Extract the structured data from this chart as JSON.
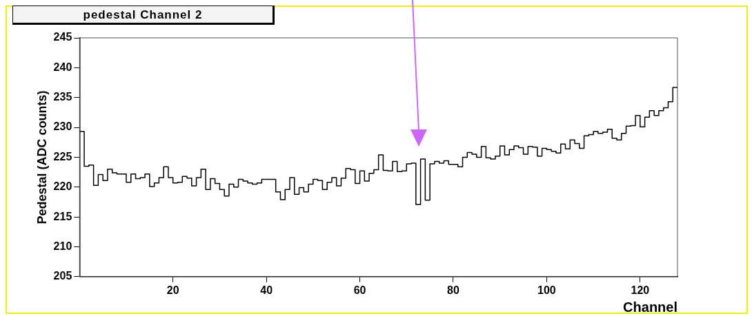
{
  "chart_data": {
    "type": "histogram",
    "title": "pedestal  Channel 2",
    "xlabel": "Channel",
    "ylabel": "Pedestal (ADC counts)",
    "color": "#000000",
    "bins": [
      0,
      1,
      2,
      3,
      4,
      5,
      6,
      7,
      8,
      9,
      10,
      11,
      12,
      13,
      14,
      15,
      16,
      17,
      18,
      19,
      20,
      21,
      22,
      23,
      24,
      25,
      26,
      27,
      28,
      29,
      30,
      31,
      32,
      33,
      34,
      35,
      36,
      37,
      38,
      39,
      40,
      41,
      42,
      43,
      44,
      45,
      46,
      47,
      48,
      49,
      50,
      51,
      52,
      53,
      54,
      55,
      56,
      57,
      58,
      59,
      60,
      61,
      62,
      63,
      64,
      65,
      66,
      67,
      68,
      69,
      70,
      71,
      72,
      73,
      74,
      75,
      76,
      77,
      78,
      79,
      80,
      81,
      82,
      83,
      84,
      85,
      86,
      87,
      88,
      89,
      90,
      91,
      92,
      93,
      94,
      95,
      96,
      97,
      98,
      99,
      100,
      101,
      102,
      103,
      104,
      105,
      106,
      107,
      108,
      109,
      110,
      111,
      112,
      113,
      114,
      115,
      116,
      117,
      118,
      119,
      120,
      121,
      122,
      123,
      124,
      125,
      126,
      127,
      128
    ],
    "values": [
      229.3,
      223.5,
      223.7,
      220.3,
      222.1,
      221.1,
      223.0,
      222.4,
      222.2,
      222.2,
      220.8,
      222.2,
      221.4,
      221.6,
      222.2,
      220.1,
      220.7,
      221.6,
      223.4,
      221.6,
      220.7,
      220.8,
      221.8,
      221.5,
      220.2,
      221.6,
      223.0,
      219.6,
      221.4,
      220.6,
      219.6,
      218.5,
      220.5,
      220.0,
      221.3,
      221.0,
      220.7,
      220.5,
      220.7,
      221.3,
      221.3,
      221.3,
      219.2,
      217.9,
      219.6,
      221.6,
      218.8,
      219.9,
      219.2,
      220.5,
      221.3,
      221.1,
      219.6,
      220.8,
      221.6,
      220.2,
      221.5,
      223.1,
      222.9,
      220.6,
      222.7,
      221.0,
      222.3,
      222.9,
      225.4,
      222.8,
      222.7,
      224.3,
      222.6,
      222.7,
      223.9,
      224.0,
      217.1,
      224.7,
      217.8,
      223.9,
      224.3,
      224.0,
      224.4,
      223.8,
      223.8,
      223.4,
      225.0,
      225.8,
      225.5,
      225.0,
      226.8,
      224.9,
      224.7,
      225.2,
      226.9,
      225.4,
      226.3,
      226.9,
      226.6,
      225.5,
      226.8,
      226.7,
      225.2,
      226.5,
      226.3,
      226.0,
      225.7,
      227.2,
      226.4,
      227.9,
      227.3,
      226.5,
      228.6,
      228.8,
      229.3,
      229.0,
      229.2,
      229.7,
      228.2,
      227.9,
      229.0,
      230.2,
      230.3,
      232.0,
      230.1,
      231.7,
      232.8,
      232.0,
      232.8,
      233.3,
      234.3,
      236.7
    ],
    "xlim": [
      0,
      128
    ],
    "xticks": [
      20,
      40,
      60,
      80,
      100,
      120
    ],
    "ylim": [
      205,
      245
    ],
    "yticks": [
      205,
      210,
      215,
      220,
      225,
      230,
      235,
      240,
      245
    ],
    "grid": false,
    "legend": false
  }
}
